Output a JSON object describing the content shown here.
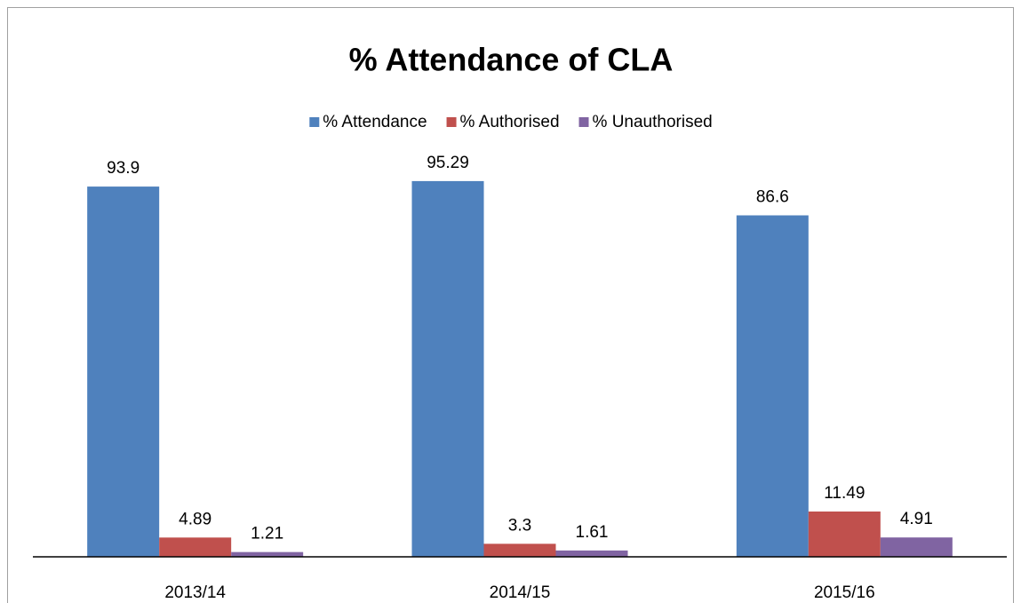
{
  "chart_data": {
    "type": "bar",
    "title": "% Attendance of CLA",
    "categories": [
      "2013/14",
      "2014/15",
      "2015/16"
    ],
    "series": [
      {
        "name": "% Attendance",
        "color": "#4f81bd",
        "values": [
          93.9,
          95.29,
          86.6
        ]
      },
      {
        "name": "% Authorised",
        "color": "#c0504d",
        "values": [
          4.89,
          3.3,
          11.49
        ]
      },
      {
        "name": "% Unauthorised",
        "color": "#8064a2",
        "values": [
          1.21,
          1.61,
          4.91
        ]
      }
    ],
    "ylim": [
      0,
      100
    ],
    "legend": "top"
  }
}
